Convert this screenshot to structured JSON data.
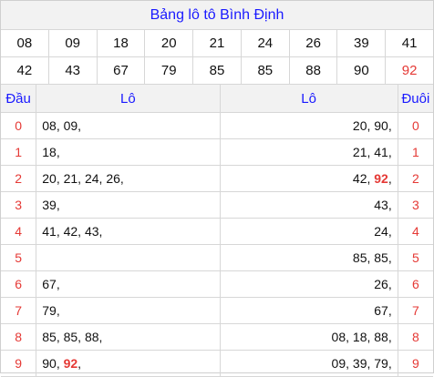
{
  "title": "Bảng lô tô Bình Định",
  "numbers": [
    [
      "08",
      "09",
      "18",
      "20",
      "21",
      "24",
      "26",
      "39",
      "41"
    ],
    [
      "42",
      "43",
      "67",
      "79",
      "85",
      "85",
      "88",
      "90",
      "92"
    ]
  ],
  "highlight_number": "92",
  "headers": {
    "dau": "Đầu",
    "lo_left": "Lô",
    "lo_right": "Lô",
    "duoi": "Đuôi"
  },
  "rows": [
    {
      "digit": "0",
      "dau_lo": [
        "08",
        "09"
      ],
      "duoi_lo": [
        "20",
        "90"
      ]
    },
    {
      "digit": "1",
      "dau_lo": [
        "18"
      ],
      "duoi_lo": [
        "21",
        "41"
      ]
    },
    {
      "digit": "2",
      "dau_lo": [
        "20",
        "21",
        "24",
        "26"
      ],
      "duoi_lo": [
        "42",
        "92"
      ]
    },
    {
      "digit": "3",
      "dau_lo": [
        "39"
      ],
      "duoi_lo": [
        "43"
      ]
    },
    {
      "digit": "4",
      "dau_lo": [
        "41",
        "42",
        "43"
      ],
      "duoi_lo": [
        "24"
      ]
    },
    {
      "digit": "5",
      "dau_lo": [],
      "duoi_lo": [
        "85",
        "85"
      ]
    },
    {
      "digit": "6",
      "dau_lo": [
        "67"
      ],
      "duoi_lo": [
        "26"
      ]
    },
    {
      "digit": "7",
      "dau_lo": [
        "79"
      ],
      "duoi_lo": [
        "67"
      ]
    },
    {
      "digit": "8",
      "dau_lo": [
        "85",
        "85",
        "88"
      ],
      "duoi_lo": [
        "08",
        "18",
        "88"
      ]
    },
    {
      "digit": "9",
      "dau_lo": [
        "90",
        "92"
      ],
      "duoi_lo": [
        "09",
        "39",
        "79"
      ]
    }
  ],
  "colors": {
    "accent": "#1a1aff",
    "highlight": "#e53935",
    "header_bg": "#f2f2f2",
    "border": "#d7d7d7"
  }
}
